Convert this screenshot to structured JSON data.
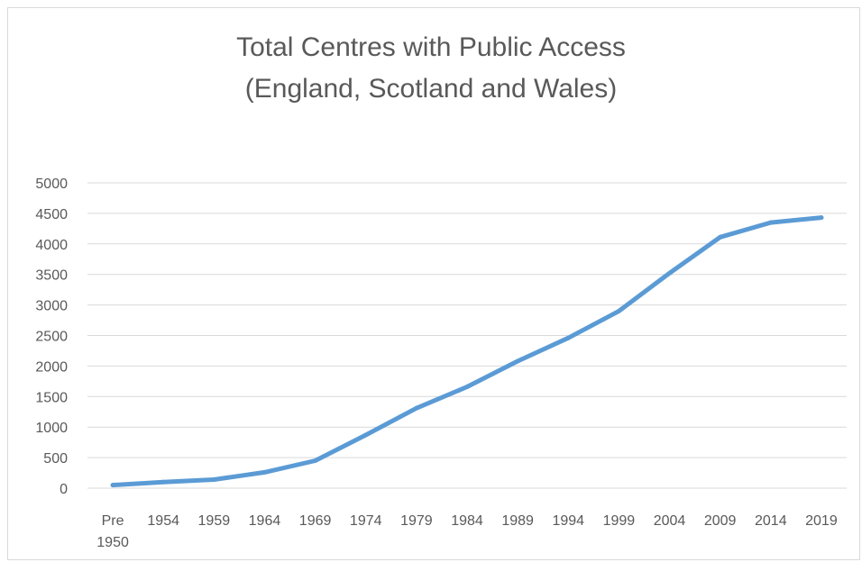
{
  "chart_data": {
    "type": "line",
    "title_line1": "Total Centres with Public Access",
    "title_line2": "(England, Scotland and Wales)",
    "xlabel": "",
    "ylabel": "",
    "categories": [
      [
        "Pre",
        "1950"
      ],
      [
        "1954"
      ],
      [
        "1959"
      ],
      [
        "1964"
      ],
      [
        "1969"
      ],
      [
        "1974"
      ],
      [
        "1979"
      ],
      [
        "1984"
      ],
      [
        "1989"
      ],
      [
        "1994"
      ],
      [
        "1999"
      ],
      [
        "2004"
      ],
      [
        "2009"
      ],
      [
        "2014"
      ],
      [
        "2019"
      ]
    ],
    "series": [
      {
        "values": [
          50,
          100,
          140,
          260,
          450,
          870,
          1310,
          1660,
          2080,
          2460,
          2900,
          3520,
          4110,
          4350,
          4430
        ]
      }
    ],
    "y_ticks": [
      "0",
      "500",
      "1000",
      "1500",
      "2000",
      "2500",
      "3000",
      "3500",
      "4000",
      "4500",
      "5000"
    ],
    "ylim": [
      0,
      5000
    ],
    "grid": true,
    "legend": "none",
    "line_color": "#5b9bd5",
    "grid_color": "#d9d9d9"
  }
}
